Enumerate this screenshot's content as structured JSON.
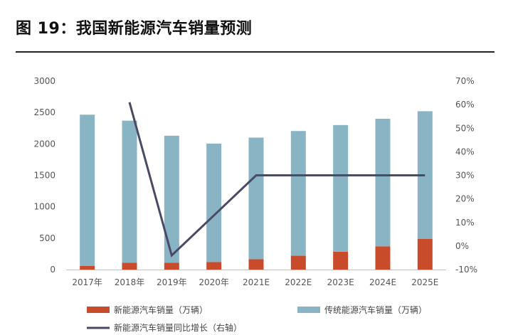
{
  "figure": {
    "title": "图 19：我国新能源汽车销量预测"
  },
  "chart_data": {
    "type": "bar",
    "stacked": true,
    "categories": [
      "2017年",
      "2018年",
      "2019年",
      "2020年",
      "2021E",
      "2022E",
      "2023E",
      "2024E",
      "2025E"
    ],
    "series": [
      {
        "name": "新能源汽车销量（万辆）",
        "kind": "bar",
        "axis": "left",
        "color": "#c84b2b",
        "values": [
          60,
          110,
          110,
          120,
          165,
          220,
          285,
          370,
          490
        ]
      },
      {
        "name": "传统能源汽车销量（万辆）",
        "kind": "bar",
        "axis": "left",
        "color": "#89b4c4",
        "values": [
          2405,
          2260,
          2020,
          1885,
          1935,
          1985,
          2015,
          2030,
          2030
        ]
      },
      {
        "name": "新能源汽车销量同比增长（右轴）",
        "kind": "line",
        "axis": "right",
        "color": "#4a4a66",
        "values": [
          null,
          61,
          -4,
          13,
          30,
          30,
          30,
          30,
          30
        ]
      }
    ],
    "left_axis": {
      "min": 0,
      "max": 3000,
      "ticks": [
        "0",
        "500",
        "1000",
        "1500",
        "2000",
        "2500",
        "3000"
      ]
    },
    "right_axis": {
      "min": -10,
      "max": 70,
      "ticks": [
        "-10%",
        "0%",
        "10%",
        "20%",
        "30%",
        "40%",
        "50%",
        "60%",
        "70%"
      ]
    },
    "grid": false,
    "legend_position": "bottom"
  }
}
